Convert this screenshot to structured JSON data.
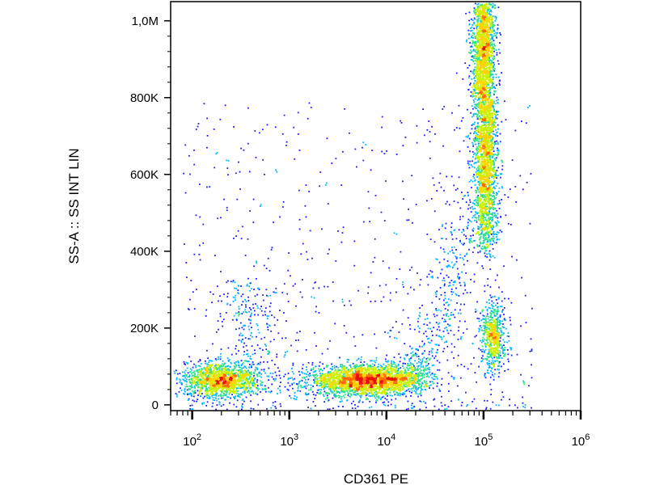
{
  "chart_data": {
    "type": "scatter",
    "subtype": "flow-cytometry-density-dot-plot",
    "xlabel": "CD361 PE",
    "ylabel": "SS-A :: SS INT LIN",
    "x_scale": "log",
    "y_scale": "linear",
    "xlim": [
      60,
      1000000
    ],
    "ylim": [
      -15000,
      1050000
    ],
    "x_ticks": [
      {
        "base": "10",
        "exp": "2",
        "value": 100
      },
      {
        "base": "10",
        "exp": "3",
        "value": 1000
      },
      {
        "base": "10",
        "exp": "4",
        "value": 10000
      },
      {
        "base": "10",
        "exp": "5",
        "value": 100000
      },
      {
        "base": "10",
        "exp": "6",
        "value": 1000000
      }
    ],
    "y_ticks": [
      {
        "label": "0",
        "value": 0
      },
      {
        "label": "200K",
        "value": 200000
      },
      {
        "label": "400K",
        "value": 400000
      },
      {
        "label": "600K",
        "value": 600000
      },
      {
        "label": "800K",
        "value": 800000
      },
      {
        "label": "1,0M",
        "value": 1000000
      }
    ],
    "colormap": [
      "#1a1aff",
      "#00b4ff",
      "#2ee08a",
      "#c8f000",
      "#ffd200",
      "#ff6a00",
      "#e81010"
    ],
    "populations": [
      {
        "x_center": 200,
        "x_spread_decades": 0.2,
        "y_center": 65000,
        "y_spread": 22000
      },
      {
        "x_center": 6000,
        "x_spread_decades": 0.3,
        "y_center": 65000,
        "y_spread": 20000
      },
      {
        "x_center": 105000,
        "x_spread_decades": 0.06,
        "y_min": 420000,
        "y_max": 1050000
      },
      {
        "x_center": 125000,
        "x_spread_decades": 0.06,
        "y_center": 180000,
        "y_spread": 45000
      }
    ],
    "grid": false,
    "legend": "none"
  }
}
